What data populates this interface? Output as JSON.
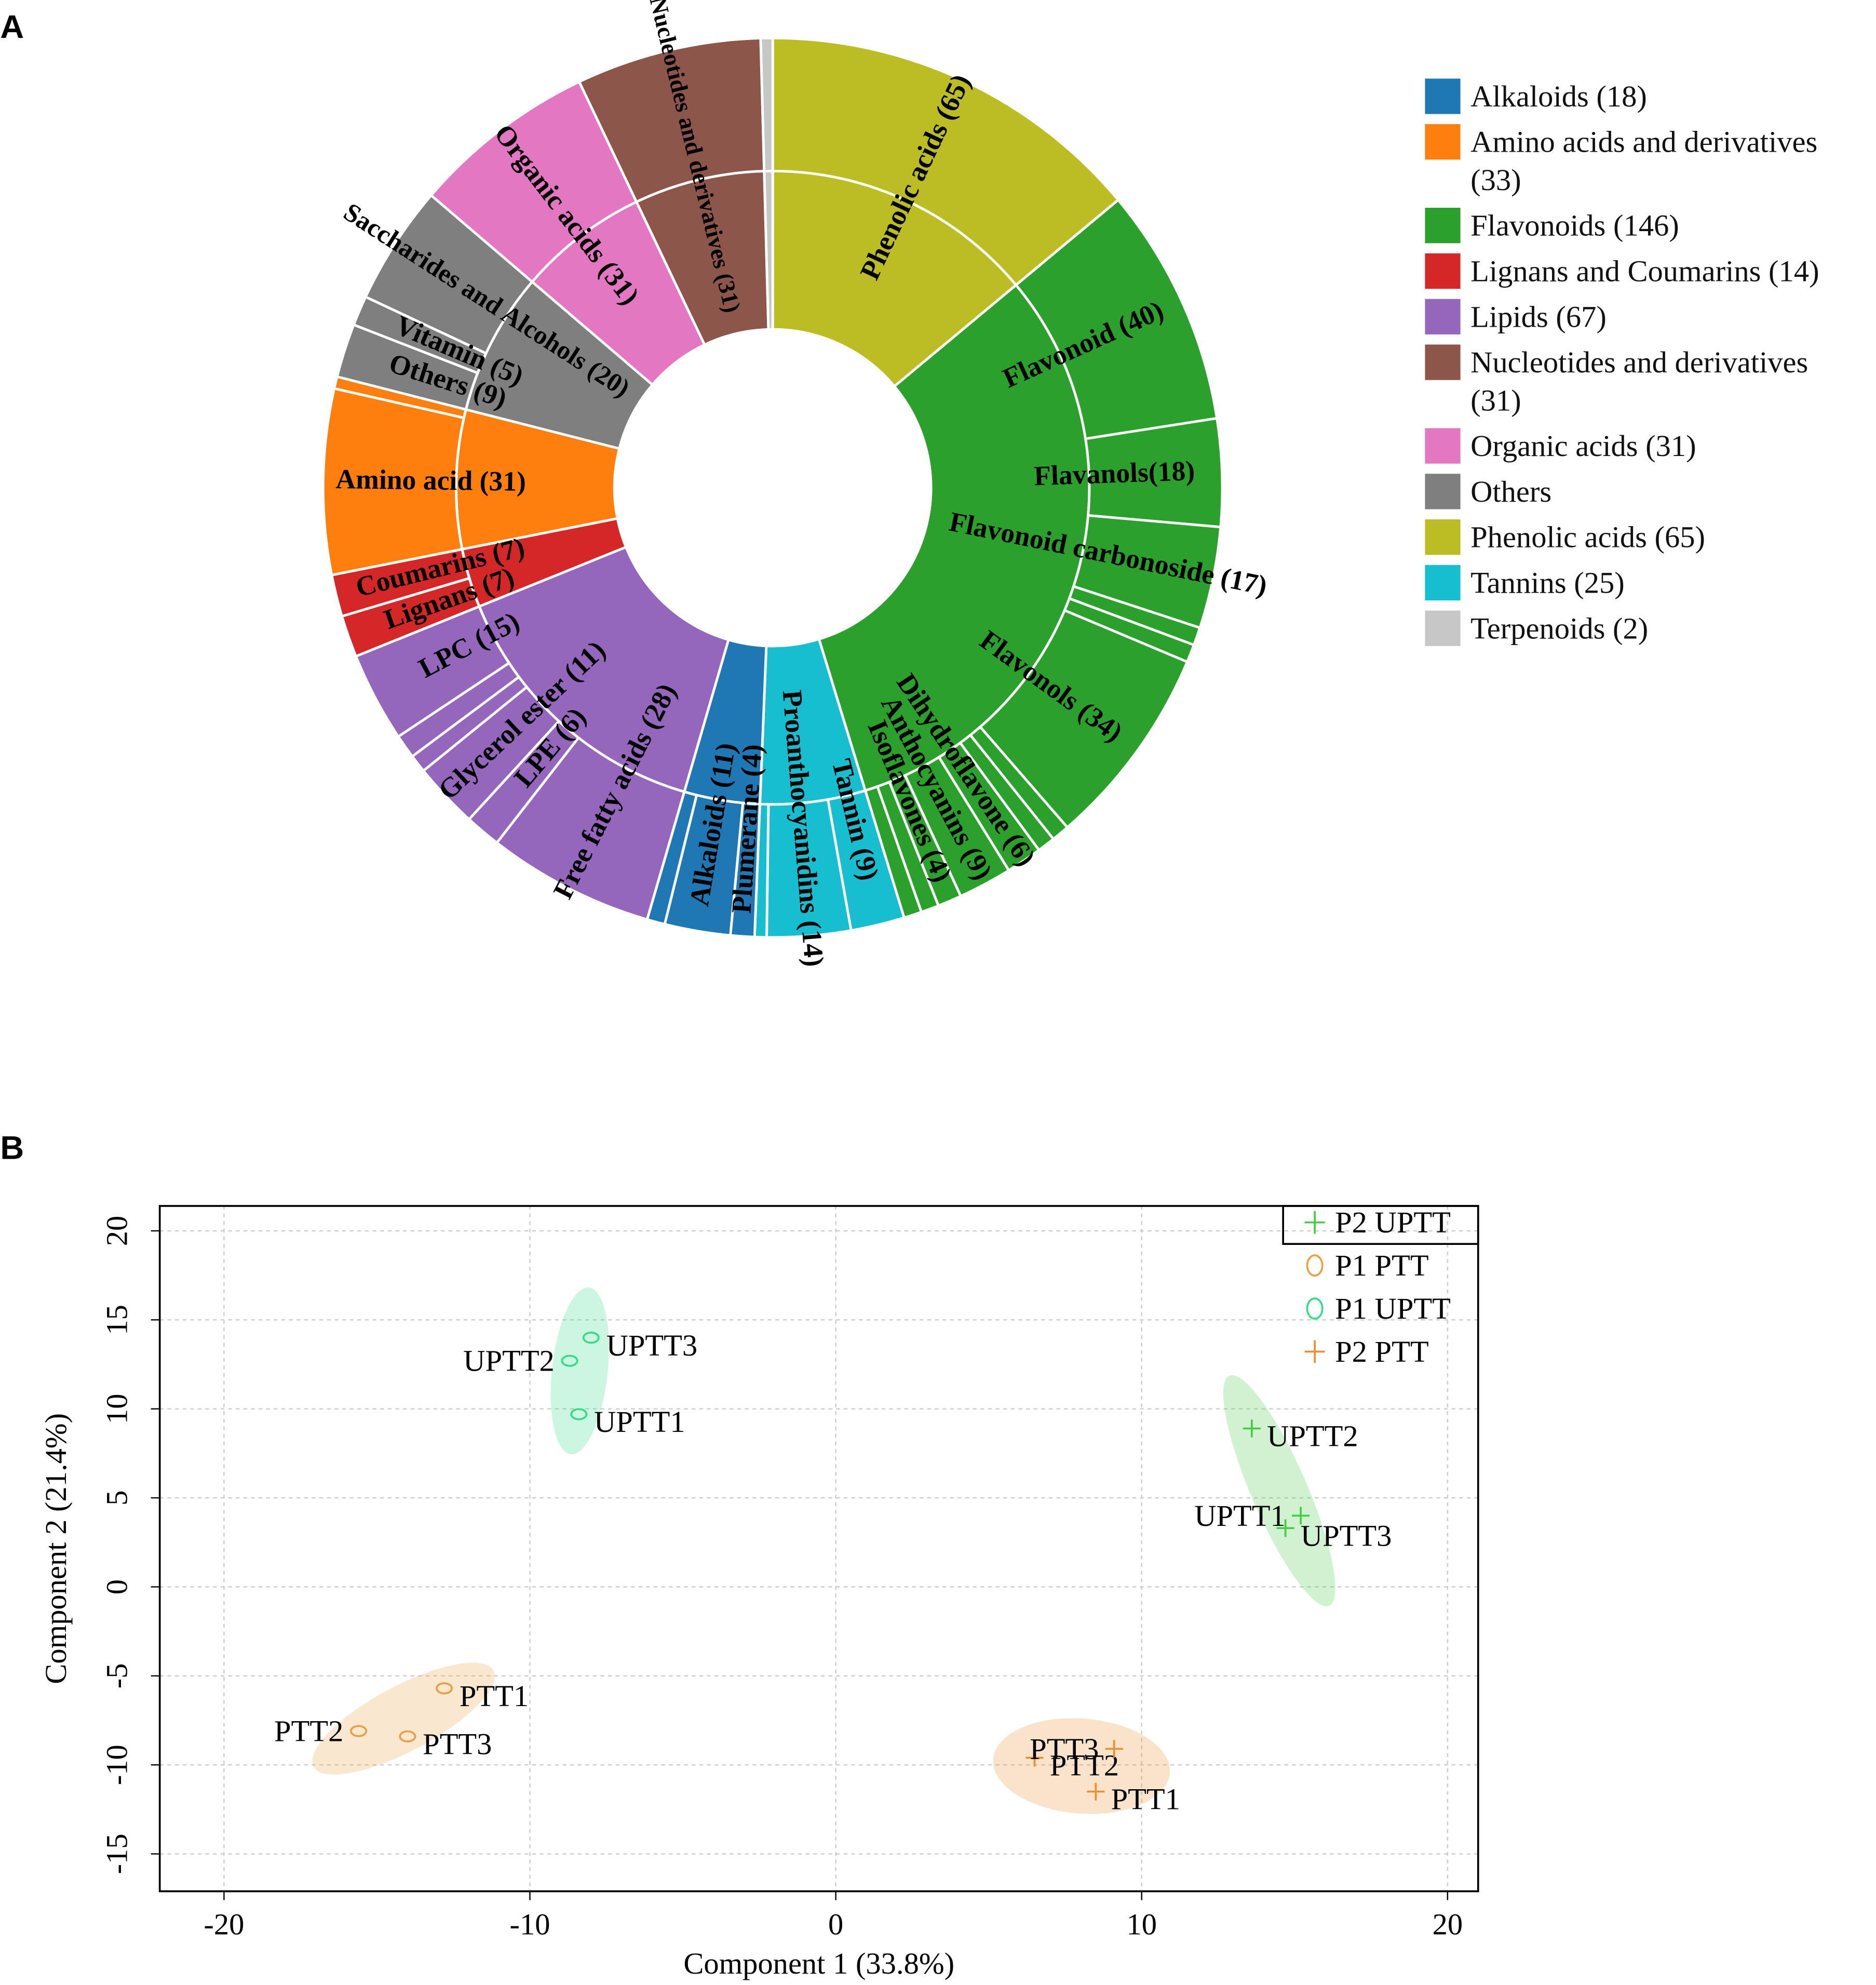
{
  "chart_data": [
    {
      "type": "sunburst",
      "panel": "A",
      "series": [
        {
          "name": "Alkaloids (18)",
          "color": "#1f77b4",
          "value": 18,
          "children": [
            {
              "label": "Plumerane (4)",
              "value": 4
            },
            {
              "label": "Alkaloids (11)",
              "value": 11
            },
            {
              "label": null,
              "value": 3
            }
          ]
        },
        {
          "name": "Amino acids and derivatives (33)",
          "color": "#ff7f0e",
          "value": 33,
          "children": [
            {
              "label": "Amino acid (31)",
              "value": 31
            },
            {
              "label": null,
              "value": 2
            }
          ]
        },
        {
          "name": "Flavonoids (146)",
          "color": "#2ca02c",
          "value": 146,
          "children": [
            {
              "label": "Flavonoid (40)",
              "value": 40
            },
            {
              "label": "Flavanols(18)",
              "value": 18
            },
            {
              "label": "Flavonoid carbonoside (17)",
              "value": 17
            },
            {
              "label": null,
              "value": 3
            },
            {
              "label": null,
              "value": 3
            },
            {
              "label": "Flavonols (34)",
              "value": 34
            },
            {
              "label": null,
              "value": 3
            },
            {
              "label": null,
              "value": 3
            },
            {
              "label": "Dihydroflavone (6)",
              "value": 6
            },
            {
              "label": "Anthocyanins (9)",
              "value": 9
            },
            {
              "label": "Isoflavones (4)",
              "value": 4
            },
            {
              "label": null,
              "value": 3
            },
            {
              "label": null,
              "value": 3
            }
          ]
        },
        {
          "name": "Lignans and Coumarins (14)",
          "color": "#d62728",
          "value": 14,
          "children": [
            {
              "label": "Lignans (7)",
              "value": 7
            },
            {
              "label": "Coumarins (7)",
              "value": 7
            }
          ]
        },
        {
          "name": "Lipids   (67)",
          "color": "#9467bd",
          "value": 67,
          "children": [
            {
              "label": "Free fatty acids (28)",
              "value": 28
            },
            {
              "label": "LPE (6)",
              "value": 6
            },
            {
              "label": "Glycerol ester (11)",
              "value": 11
            },
            {
              "label": null,
              "value": 3
            },
            {
              "label": null,
              "value": 4
            },
            {
              "label": "LPC (15)",
              "value": 15
            }
          ]
        },
        {
          "name": "Nucleotides and derivatives (31)",
          "color": "#8c564b",
          "value": 31,
          "children": [
            {
              "label": "Nucleotides and derivatives (31)",
              "value": 31
            }
          ]
        },
        {
          "name": "Organic acids (31)",
          "color": "#e377c2",
          "value": 31,
          "children": [
            {
              "label": "Organic acids (31)",
              "value": 31
            }
          ]
        },
        {
          "name": "Others",
          "color": "#7f7f7f",
          "value": 34,
          "children": [
            {
              "label": "Others (9)",
              "value": 9
            },
            {
              "label": "Vitamin (5)",
              "value": 5
            },
            {
              "label": "Saccharides and Alcohols (20)",
              "value": 20
            }
          ]
        },
        {
          "name": "Phenolic acids (65)",
          "color": "#bcbd22",
          "value": 65,
          "children": [
            {
              "label": "Phenolic acids (65)",
              "value": 65
            }
          ]
        },
        {
          "name": "Tannins (25)",
          "color": "#17becf",
          "value": 25,
          "children": [
            {
              "label": "Tannin (9)",
              "value": 9
            },
            {
              "label": "Proanthocyanidins (14)",
              "value": 14
            },
            {
              "label": null,
              "value": 2
            }
          ]
        },
        {
          "name": "Terpenoids  (2)",
          "color": "#c7c7c7",
          "value": 2,
          "children": [
            {
              "label": null,
              "value": 2
            }
          ]
        }
      ]
    },
    {
      "type": "scatter",
      "panel": "B",
      "xlabel": "Component 1 (33.8%)",
      "ylabel": "Component 2 (21.4%)",
      "xlim": [
        -22.1,
        21.0
      ],
      "ylim": [
        -17.1,
        21.4
      ],
      "xticks": [
        -20,
        -10,
        0,
        10,
        20
      ],
      "yticks": [
        -15,
        -10,
        -5,
        0,
        5,
        10,
        15,
        20
      ],
      "grid": true,
      "series": [
        {
          "name": "P2 UPTT",
          "color": "#44cc44",
          "marker": "plus",
          "labels": [
            "UPTT2",
            "UPTT1",
            "UPTT3"
          ],
          "x": [
            13.6,
            15.2,
            14.7
          ],
          "y": [
            8.9,
            4.0,
            3.3
          ]
        },
        {
          "name": "P1 PTT",
          "color": "#e8a040",
          "marker": "circle",
          "labels": [
            "PTT1",
            "PTT2",
            "PTT3"
          ],
          "x": [
            -12.8,
            -15.6,
            -14.0
          ],
          "y": [
            -5.7,
            -8.1,
            -8.4
          ]
        },
        {
          "name": "P1 UPTT",
          "color": "#33dd88",
          "marker": "circle",
          "labels": [
            "UPTT3",
            "UPTT2",
            "UPTT1"
          ],
          "x": [
            -8.0,
            -8.7,
            -8.4
          ],
          "y": [
            14.0,
            12.7,
            9.7
          ]
        },
        {
          "name": "P2 PTT",
          "color": "#e89030",
          "marker": "plus",
          "labels": [
            "PTT2",
            "PTT3",
            "PTT1"
          ],
          "x": [
            6.5,
            9.1,
            8.5
          ],
          "y": [
            -9.6,
            -9.1,
            -11.5
          ]
        }
      ]
    }
  ]
}
